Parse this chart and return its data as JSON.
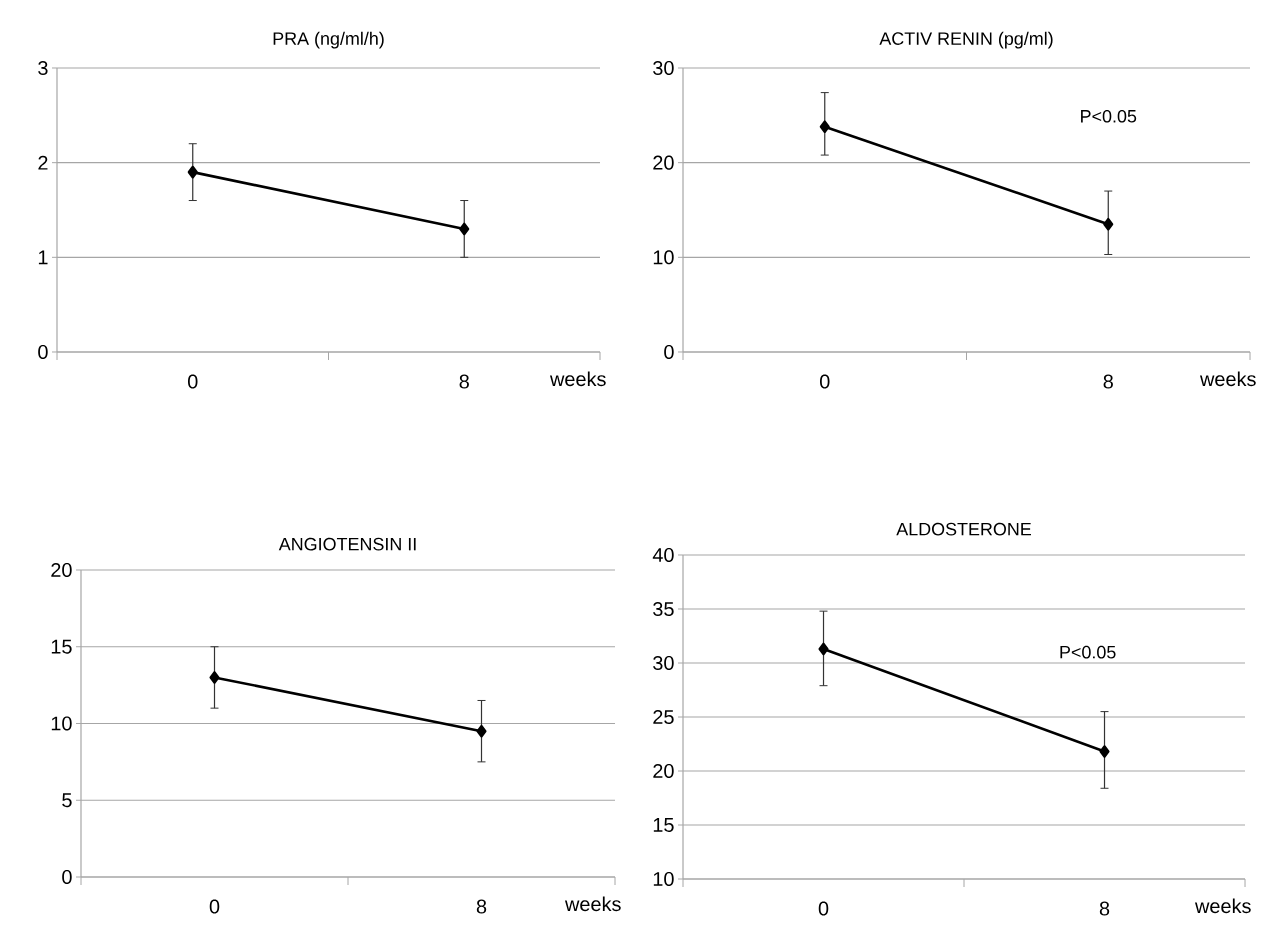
{
  "chart_data": [
    {
      "type": "line",
      "title": "PRA (ng/ml/h)",
      "xlabel": "weeks",
      "categories": [
        "0",
        "8"
      ],
      "values": [
        1.9,
        1.3
      ],
      "errors": [
        [
          1.6,
          2.2
        ],
        [
          1.0,
          1.6
        ]
      ],
      "color": "#000000",
      "marker": "diamond",
      "grid": "y",
      "ylim": [
        0,
        3
      ],
      "yticks": [
        0,
        1,
        2,
        3
      ]
    },
    {
      "type": "line",
      "title": "ACTIV RENIN (pg/ml)",
      "xlabel": "weeks",
      "categories": [
        "0",
        "8"
      ],
      "values": [
        23.8,
        13.5
      ],
      "errors": [
        [
          20.8,
          27.4
        ],
        [
          10.3,
          17.0
        ]
      ],
      "color": "#000000",
      "marker": "diamond",
      "grid": "y",
      "ylim": [
        0,
        30
      ],
      "yticks": [
        0,
        10,
        20,
        30
      ],
      "annotations": [
        "P<0.05"
      ]
    },
    {
      "type": "line",
      "title": "ANGIOTENSIN II",
      "xlabel": "weeks",
      "categories": [
        "0",
        "8"
      ],
      "values": [
        13.0,
        9.5
      ],
      "errors": [
        [
          11.0,
          15.0
        ],
        [
          7.5,
          11.5
        ]
      ],
      "color": "#000000",
      "marker": "diamond",
      "grid": "y",
      "ylim": [
        0,
        20
      ],
      "yticks": [
        0,
        5,
        10,
        15,
        20
      ]
    },
    {
      "type": "line",
      "title": "ALDOSTERONE",
      "xlabel": "weeks",
      "categories": [
        "0",
        "8"
      ],
      "values": [
        31.3,
        21.8
      ],
      "errors": [
        [
          27.9,
          34.8
        ],
        [
          18.4,
          25.5
        ]
      ],
      "color": "#000000",
      "marker": "diamond",
      "grid": "y",
      "ylim": [
        10,
        40
      ],
      "yticks": [
        10,
        15,
        20,
        25,
        30,
        35,
        40
      ],
      "annotations": [
        "P<0.05"
      ]
    }
  ]
}
